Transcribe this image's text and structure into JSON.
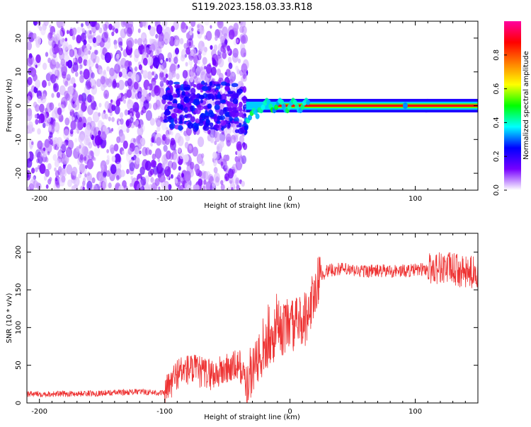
{
  "title": "S119.2023.158.03.33.R18",
  "chart_data": [
    {
      "type": "heatmap",
      "xlabel": "Height of straight line (km)",
      "ylabel": "Frequency (Hz)",
      "xlim": [
        -210,
        150
      ],
      "ylim": [
        -25,
        25
      ],
      "xticks": [
        -200,
        -100,
        0,
        100
      ],
      "yticks": [
        -20,
        -10,
        0,
        10,
        20
      ],
      "colorbar": {
        "label": "Normalized spectral amplitude",
        "range": [
          0,
          1
        ],
        "ticks": [
          "0.0",
          "0.2",
          "0.4",
          "0.6",
          "0.8"
        ],
        "colormap": [
          "#ffffff",
          "#7700ff",
          "#0000ff",
          "#00ffff",
          "#00ff00",
          "#ffff00",
          "#ff8000",
          "#ff0000",
          "#ff00a0"
        ]
      },
      "features": {
        "noise_region_km": [
          -210,
          -35
        ],
        "signal_line_freq_hz": 0,
        "signal_start_km": -35,
        "peak_amplitude_region_km": [
          -10,
          150
        ]
      }
    },
    {
      "type": "line",
      "xlabel": "Height of straight line (km)",
      "ylabel": "SNR (10 * v/v)",
      "xlim": [
        -210,
        150
      ],
      "ylim": [
        0,
        225
      ],
      "xticks": [
        -200,
        -100,
        0,
        100
      ],
      "yticks": [
        0,
        50,
        100,
        150,
        200
      ],
      "series_color": "#ee3333",
      "profile": {
        "x": [
          -210,
          -180,
          -150,
          -120,
          -100,
          -95,
          -90,
          -80,
          -70,
          -60,
          -50,
          -40,
          -35,
          -30,
          -20,
          -10,
          0,
          10,
          15,
          20,
          25,
          30,
          40,
          50,
          70,
          90,
          100,
          110,
          120,
          130,
          140,
          150
        ],
        "y": [
          12,
          12,
          13,
          15,
          13,
          25,
          40,
          45,
          40,
          38,
          45,
          50,
          25,
          40,
          70,
          95,
          100,
          110,
          120,
          150,
          170,
          175,
          178,
          175,
          175,
          175,
          176,
          178,
          180,
          178,
          172,
          175
        ]
      }
    }
  ]
}
